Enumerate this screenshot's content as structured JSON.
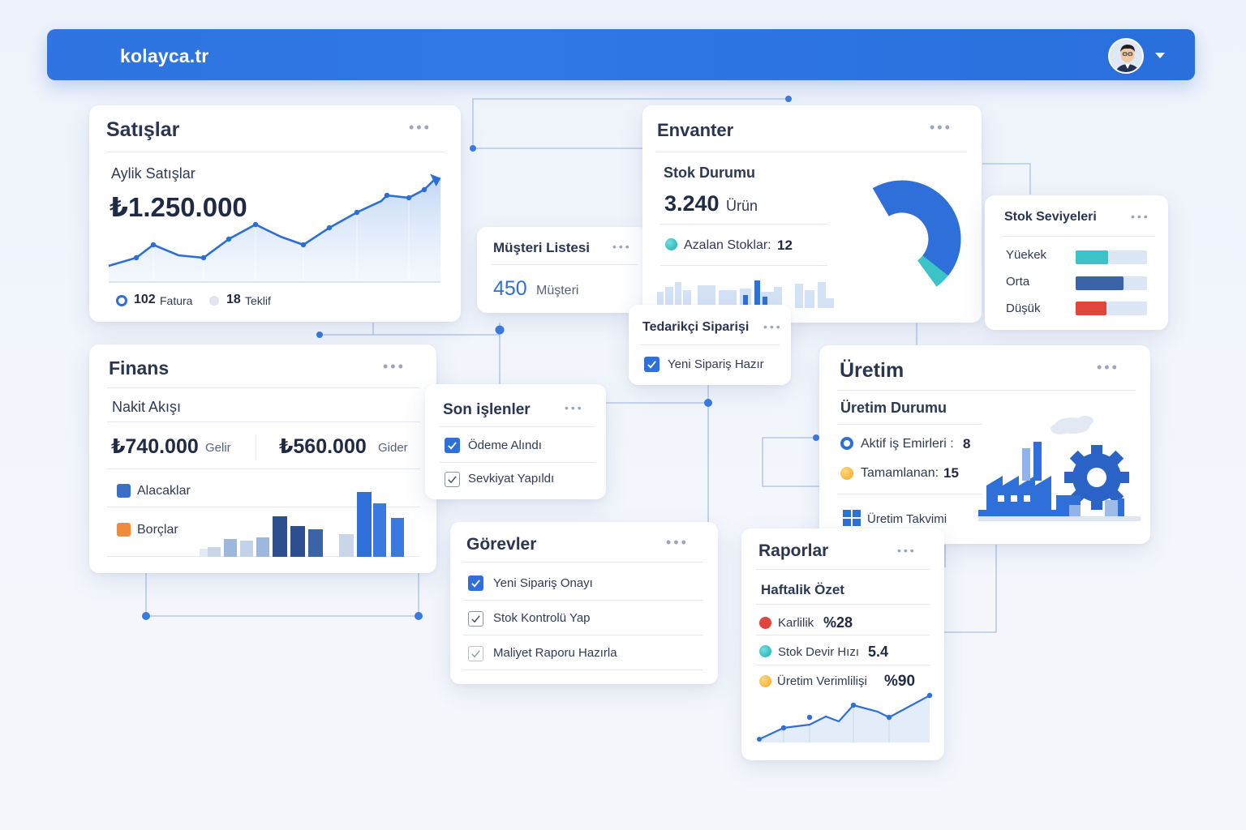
{
  "header": {
    "brand": "kolayca.tr",
    "avatar_icon": "user-avatar",
    "menu_icon": "caret-down-icon"
  },
  "colors": {
    "primary": "#2f74e0",
    "teal": "#3cc3c8",
    "orange": "#f28a3c",
    "yellow": "#f5b942",
    "red": "#e0463b",
    "navy": "#2d4f8e"
  },
  "sales": {
    "title": "Satışlar",
    "subtitle": "Aylik Satışlar",
    "amount": "₺1.250.000",
    "invoice_count": "102",
    "invoice_label": "Fatura",
    "offer_count": "18",
    "offer_label": "Teklif"
  },
  "customers": {
    "title": "Müşteri Listesi",
    "count": "450",
    "label": "Müşteri"
  },
  "inventory": {
    "title": "Envanter",
    "subtitle": "Stok Durumu",
    "count": "3.240",
    "unit": "Ürün",
    "low_label": "Azalan Stoklar:",
    "low_value": "12"
  },
  "stock_levels": {
    "title": "Stok Seviyeleri",
    "items": [
      {
        "label": "Yüekek",
        "level": 0.45,
        "color": "#3cc3c8"
      },
      {
        "label": "Orta",
        "level": 0.67,
        "color": "#3b63a8"
      },
      {
        "label": "Düşük",
        "level": 0.43,
        "color": "#e0463b"
      }
    ]
  },
  "supplier": {
    "title": "Tedarikçi Siparişi",
    "item": "Yeni Sipariş Hazır"
  },
  "finance": {
    "title": "Finans",
    "subtitle": "Nakit Akışı",
    "income": "₺740.000",
    "income_label": "Gelir",
    "expense": "₺560.000",
    "expense_label": "Gider",
    "legend_receivables": "Alacaklar",
    "legend_payables": "Borçlar"
  },
  "recent": {
    "title": "Son işlenler",
    "items": [
      "Ödeme Alındı",
      "Sevkiyat Yapıldı"
    ]
  },
  "production": {
    "title": "Üretim",
    "subtitle": "Üretim Durumu",
    "active_label": "Aktif iş Emirleri :",
    "active_value": "8",
    "done_label": "Tamamlanan:",
    "done_value": "15",
    "calendar": "Üretim Takvimi"
  },
  "tasks": {
    "title": "Görevler",
    "items": [
      "Yeni Sipariş Onayı",
      "Stok Kontrolü Yap",
      "Maliyet Raporu Hazırla"
    ]
  },
  "reports": {
    "title": "Raporlar",
    "subtitle": "Haftalik Özet",
    "profit_label": "Karlilik",
    "profit_value": "%28",
    "turnover_label": "Stok Devir Hızı",
    "turnover_value": "5.4",
    "efficiency_label": "Üretim Verimlilişi",
    "efficiency_value": "%90"
  }
}
